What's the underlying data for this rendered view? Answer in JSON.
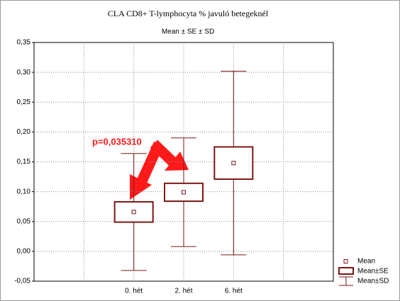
{
  "chart_data": {
    "type": "box",
    "title": "CLA CD8+ T-lymphocyta  %  javuló betegeknél",
    "subtitle": "Mean ± SE ± SD",
    "categories": [
      "0. hét",
      "2. hét",
      "6. hét"
    ],
    "mean": [
      0.066,
      0.099,
      0.148
    ],
    "se": [
      0.017,
      0.015,
      0.027
    ],
    "sd": [
      0.098,
      0.091,
      0.154
    ],
    "color": "#7b1616",
    "ylim": [
      -0.05,
      0.35
    ],
    "yticks": [
      {
        "value": -0.05,
        "label": "-0,05"
      },
      {
        "value": 0,
        "label": "0,00"
      },
      {
        "value": 0.05,
        "label": "0,05"
      },
      {
        "value": 0.1,
        "label": "0,10"
      },
      {
        "value": 0.15,
        "label": "0,15"
      },
      {
        "value": 0.2,
        "label": "0,20"
      },
      {
        "value": 0.25,
        "label": "0,25"
      },
      {
        "value": 0.3,
        "label": "0,30"
      },
      {
        "value": 0.35,
        "label": "0,35"
      }
    ],
    "grid": true,
    "annotation": "p=0,035310",
    "legend": {
      "position": "bottom-right",
      "entries": [
        "Mean",
        "Mean±SE",
        "Mean±SD"
      ]
    }
  }
}
